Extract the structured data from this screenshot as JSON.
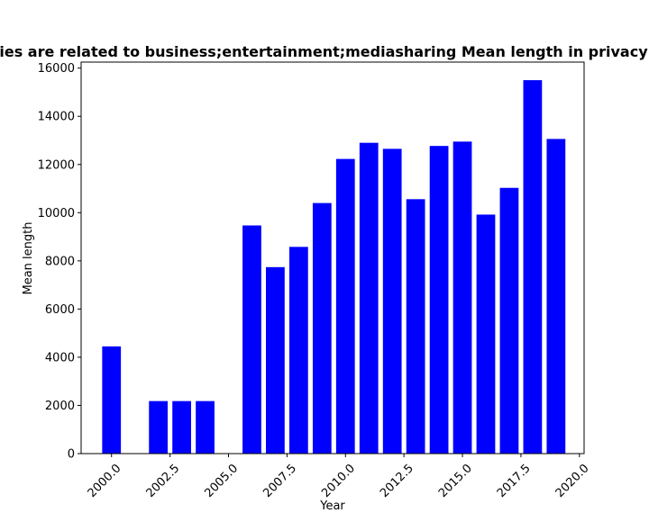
{
  "chart_data": {
    "type": "bar",
    "title": "Mean length of privacy policies of apps whose categories are related to business;entertainment;mediasharing Mean length in privacy policies",
    "title_visible": "ies are related to business;entertainment;mediasharing Mean length in privacy",
    "xlabel": "Year",
    "ylabel": "Mean length",
    "x": [
      2000,
      2002,
      2003,
      2004,
      2006,
      2007,
      2008,
      2009,
      2010,
      2011,
      2012,
      2013,
      2014,
      2015,
      2016,
      2017,
      2018,
      2019
    ],
    "values": [
      4450,
      2180,
      2180,
      2180,
      9470,
      7740,
      8580,
      10400,
      12230,
      12900,
      12650,
      10560,
      12770,
      12950,
      9920,
      11030,
      15500,
      13060
    ],
    "xlim": [
      1998.7,
      2020.2
    ],
    "ylim": [
      0,
      16250
    ],
    "xticks": [
      "2000.0",
      "2002.5",
      "2005.0",
      "2007.5",
      "2010.0",
      "2012.5",
      "2015.0",
      "2017.5",
      "2020.0"
    ],
    "xtick_values": [
      2000,
      2002.5,
      2005,
      2007.5,
      2010,
      2012.5,
      2015,
      2017.5,
      2020
    ],
    "yticks": [
      "0",
      "2000",
      "4000",
      "6000",
      "8000",
      "10000",
      "12000",
      "14000",
      "16000"
    ],
    "ytick_values": [
      0,
      2000,
      4000,
      6000,
      8000,
      10000,
      12000,
      14000,
      16000
    ],
    "bar_color": "#0000ff",
    "grid": false,
    "legend": "none"
  }
}
